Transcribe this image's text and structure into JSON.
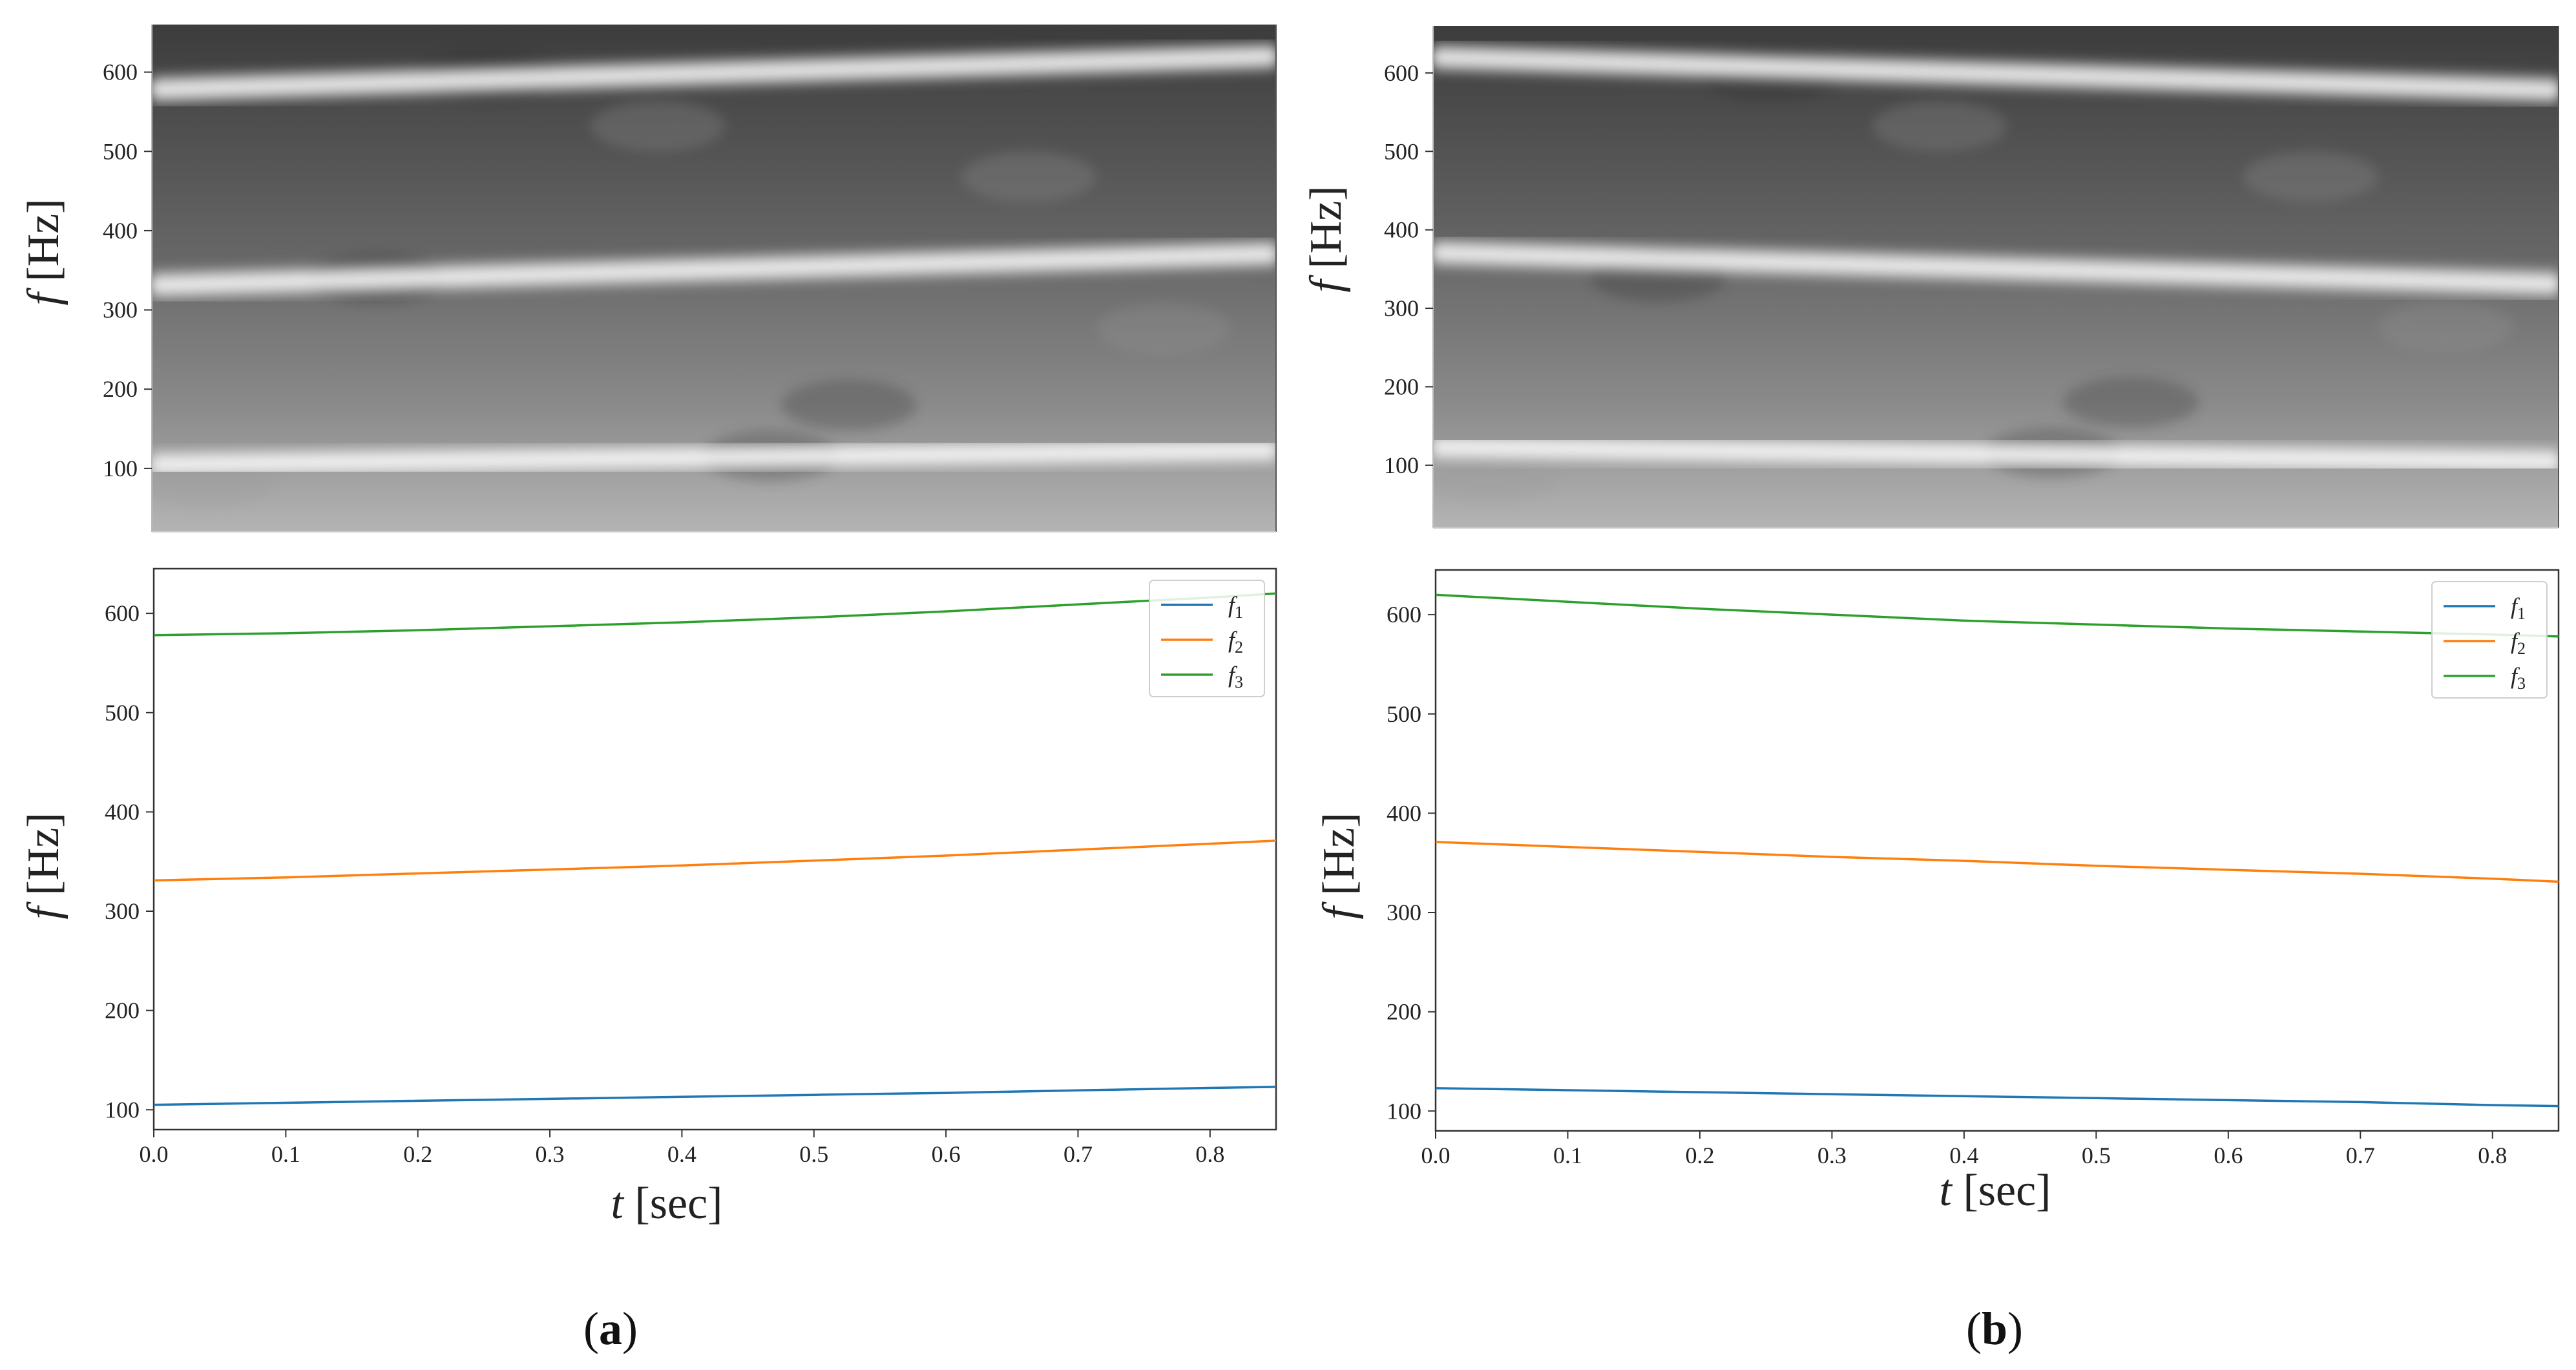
{
  "figure": {
    "panel_labels": [
      "a",
      "b"
    ]
  },
  "colors": {
    "f1": "#1f77b4",
    "f2": "#ff7f0e",
    "f3": "#2ca02c",
    "axis": "#333333",
    "text": "#222222"
  },
  "chart_data": [
    {
      "id": "a-spectrogram",
      "type": "heatmap",
      "panel": "a",
      "title": "",
      "xlabel": "",
      "ylabel_symbol": "f",
      "ylabel_unit": "[Hz]",
      "xlim": [
        0,
        0.85
      ],
      "ylim": [
        20,
        660
      ],
      "yticks": [
        100,
        200,
        300,
        400,
        500,
        600
      ],
      "colormap": "grayscale",
      "bright_bands": [
        {
          "name": "f1",
          "start_hz": 105,
          "end_hz": 123
        },
        {
          "name": "f2",
          "start_hz": 331,
          "end_hz": 371
        },
        {
          "name": "f3",
          "start_hz": 578,
          "end_hz": 620
        }
      ]
    },
    {
      "id": "b-spectrogram",
      "type": "heatmap",
      "panel": "b",
      "title": "",
      "xlabel": "",
      "ylabel_symbol": "f",
      "ylabel_unit": "[Hz]",
      "xlim": [
        0,
        0.85
      ],
      "ylim": [
        20,
        660
      ],
      "yticks": [
        100,
        200,
        300,
        400,
        500,
        600
      ],
      "colormap": "grayscale",
      "bright_bands": [
        {
          "name": "f1",
          "start_hz": 123,
          "end_hz": 105
        },
        {
          "name": "f2",
          "start_hz": 371,
          "end_hz": 331
        },
        {
          "name": "f3",
          "start_hz": 620,
          "end_hz": 578
        }
      ]
    },
    {
      "id": "a-lines",
      "type": "line",
      "panel": "a",
      "title": "",
      "xlabel_symbol": "t",
      "xlabel_unit": "[sec]",
      "ylabel_symbol": "f",
      "ylabel_unit": "[Hz]",
      "xlim": [
        0,
        0.85
      ],
      "ylim": [
        80,
        645
      ],
      "xticks": [
        0.0,
        0.1,
        0.2,
        0.3,
        0.4,
        0.5,
        0.6,
        0.7,
        0.8
      ],
      "xtick_labels": [
        "0.0",
        "0.1",
        "0.2",
        "0.3",
        "0.4",
        "0.5",
        "0.6",
        "0.7",
        "0.8"
      ],
      "yticks": [
        100,
        200,
        300,
        400,
        500,
        600
      ],
      "legend": "top-right",
      "x": [
        0.0,
        0.1,
        0.2,
        0.3,
        0.4,
        0.5,
        0.6,
        0.7,
        0.8,
        0.85
      ],
      "series": [
        {
          "name": "f",
          "subscript": "1",
          "color_key": "f1",
          "values": [
            105,
            107,
            109,
            111,
            113,
            115,
            117,
            119.5,
            122,
            123
          ]
        },
        {
          "name": "f",
          "subscript": "2",
          "color_key": "f2",
          "values": [
            331,
            334,
            338,
            342,
            346,
            351,
            356,
            362,
            368,
            371
          ]
        },
        {
          "name": "f",
          "subscript": "3",
          "color_key": "f3",
          "values": [
            578,
            580,
            583,
            587,
            591,
            596,
            602,
            609,
            616,
            620
          ]
        }
      ]
    },
    {
      "id": "b-lines",
      "type": "line",
      "panel": "b",
      "title": "",
      "xlabel_symbol": "t",
      "xlabel_unit": "[sec]",
      "ylabel_symbol": "f",
      "ylabel_unit": "[Hz]",
      "xlim": [
        0,
        0.85
      ],
      "ylim": [
        80,
        645
      ],
      "xticks": [
        0.0,
        0.1,
        0.2,
        0.3,
        0.4,
        0.5,
        0.6,
        0.7,
        0.8
      ],
      "xtick_labels": [
        "0.0",
        "0.1",
        "0.2",
        "0.3",
        "0.4",
        "0.5",
        "0.6",
        "0.7",
        "0.8"
      ],
      "yticks": [
        100,
        200,
        300,
        400,
        500,
        600
      ],
      "legend": "top-right",
      "x": [
        0.0,
        0.1,
        0.2,
        0.3,
        0.4,
        0.5,
        0.6,
        0.7,
        0.8,
        0.85
      ],
      "series": [
        {
          "name": "f",
          "subscript": "1",
          "color_key": "f1",
          "values": [
            123,
            121,
            119,
            117,
            115,
            113,
            111,
            109,
            106,
            105
          ]
        },
        {
          "name": "f",
          "subscript": "2",
          "color_key": "f2",
          "values": [
            371,
            366,
            361,
            356,
            352,
            347,
            343,
            339,
            334,
            331
          ]
        },
        {
          "name": "f",
          "subscript": "3",
          "color_key": "f3",
          "values": [
            620,
            613,
            606,
            600,
            594,
            590,
            586,
            583,
            580,
            578
          ]
        }
      ]
    }
  ]
}
